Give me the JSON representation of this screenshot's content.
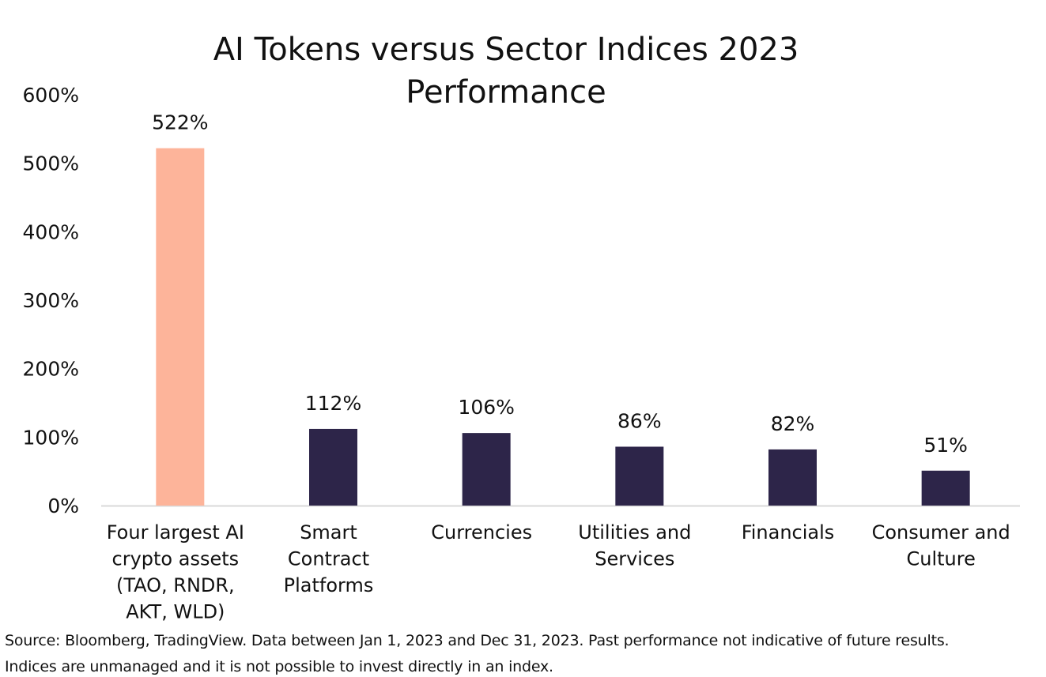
{
  "chart_data": {
    "type": "bar",
    "title_lines": [
      "AI Tokens versus Sector Indices 2023",
      "Performance"
    ],
    "categories": [
      [
        "Four largest AI",
        "crypto assets",
        "(TAO, RNDR,",
        "AKT, WLD)"
      ],
      [
        "Smart",
        "Contract",
        "Platforms"
      ],
      [
        "Currencies"
      ],
      [
        "Utilities and",
        "Services"
      ],
      [
        "Financials"
      ],
      [
        "Consumer and",
        "Culture"
      ]
    ],
    "values": [
      522,
      112,
      106,
      86,
      82,
      51
    ],
    "value_labels": [
      "522%",
      "112%",
      "106%",
      "86%",
      "82%",
      "51%"
    ],
    "bar_colors": [
      "#FDB49A",
      "#2D2549",
      "#2D2549",
      "#2D2549",
      "#2D2549",
      "#2D2549"
    ],
    "ylim": [
      0,
      600
    ],
    "yticks": [
      0,
      100,
      200,
      300,
      400,
      500,
      600
    ],
    "ytick_labels": [
      "0%",
      "100%",
      "200%",
      "300%",
      "400%",
      "500%",
      "600%"
    ],
    "xlabel": "",
    "ylabel": "",
    "grid": false,
    "axis_color": "#D9D9D9"
  },
  "footnotes": {
    "line1": "Source: Bloomberg, TradingView. Data between Jan 1, 2023 and Dec 31, 2023. Past performance not indicative of future results.",
    "line2": "Indices are unmanaged and it is not possible to invest directly in an index."
  }
}
